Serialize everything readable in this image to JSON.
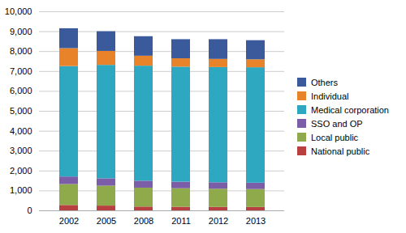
{
  "chart_data": {
    "type": "bar",
    "stacked": true,
    "categories": [
      "2002",
      "2005",
      "2008",
      "2011",
      "2012",
      "2013"
    ],
    "series": [
      {
        "name": "National public",
        "color": "#b94040",
        "values": [
          270,
          240,
          190,
          180,
          175,
          170
        ]
      },
      {
        "name": "Local public",
        "color": "#8faa4b",
        "values": [
          1050,
          1000,
          950,
          930,
          910,
          900
        ]
      },
      {
        "name": "SSO and OP",
        "color": "#7b5ea7",
        "values": [
          380,
          370,
          350,
          330,
          325,
          320
        ]
      },
      {
        "name": "Medical corporation",
        "color": "#2ea8c0",
        "values": [
          5550,
          5700,
          5780,
          5780,
          5790,
          5800
        ]
      },
      {
        "name": "Individual",
        "color": "#e8832a",
        "values": [
          900,
          700,
          500,
          420,
          410,
          400
        ]
      },
      {
        "name": "Others",
        "color": "#3a5a9c",
        "values": [
          1000,
          990,
          980,
          960,
          990,
          960
        ]
      }
    ],
    "ylim": [
      0,
      10000
    ],
    "yticks": [
      0,
      {
        "value": 1000,
        "label": "1,000"
      },
      {
        "value": 2000,
        "label": "2,000"
      },
      {
        "value": 3000,
        "label": "3,000"
      },
      {
        "value": 4000,
        "label": "4,000"
      },
      {
        "value": 5000,
        "label": "5,000"
      },
      {
        "value": 6000,
        "label": "6,000"
      },
      {
        "value": 7000,
        "label": "7,000"
      },
      {
        "value": 8000,
        "label": "8,000"
      },
      {
        "value": 9000,
        "label": "9,000"
      },
      {
        "value": 10000,
        "label": "10,000"
      }
    ],
    "grid": true,
    "legend": "right"
  }
}
